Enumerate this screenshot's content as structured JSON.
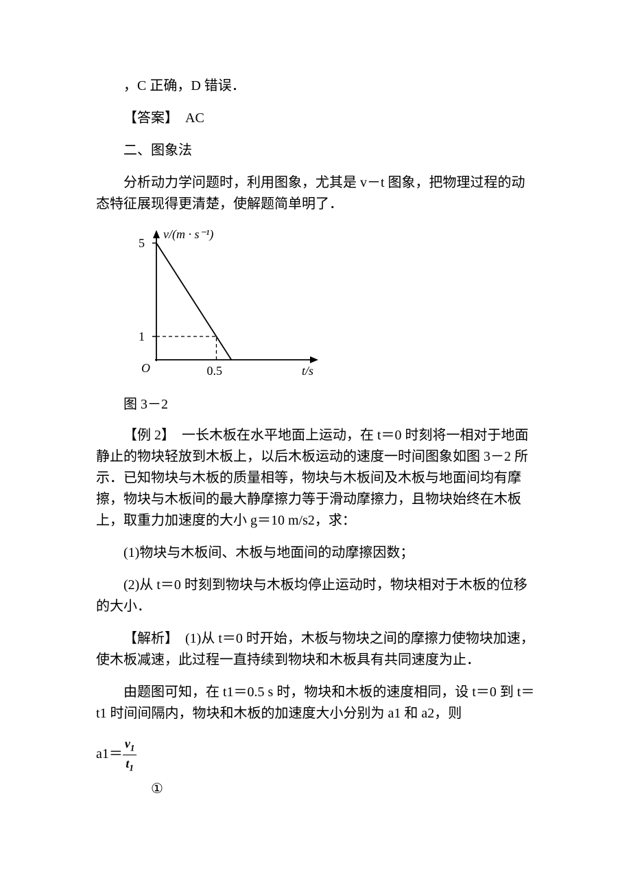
{
  "p1": "，C 正确，D 错误．",
  "p2": "【答案】　AC",
  "p3": "二、图象法",
  "p4": "分析动力学问题时，利用图象，尤其是 v－t 图象，把物理过程的动态特征展现得更清楚，使解题简单明了．",
  "figureLabel": "图 3－2",
  "p5": "【例 2】　一长木板在水平地面上运动，在 t＝0 时刻将一相对于地面静止的物块轻放到木板上，以后木板运动的速度一时间图象如图 3－2 所示．已知物块与木板的质量相等，物块与木板间及木板与地面间均有摩擦，物块与木板间的最大静摩擦力等于滑动摩擦力，且物块始终在木板上，取重力加速度的大小 g＝10 m/s2，求：",
  "p6": "(1)物块与木板间、木板与地面间的动摩擦因数；",
  "p7": "(2)从 t＝0 时刻到物块与木板均停止运动时，物块相对于木板的位移的大小．",
  "p8": "【解析】　(1)从 t＝0 时开始，木板与物块之间的摩擦力使物块加速，使木板减速，此过程一直持续到物块和木板具有共同速度为止．",
  "p9": "由题图可知，在 t1＝0.5 s 时，物块和木板的速度相同，设 t＝0 到 t＝t1 时间间隔内，物块和木板的加速度大小分别为 a1 和 a2，则",
  "formulaPrefix": "a1＝",
  "fracNum": "v",
  "fracNumSub": "1",
  "fracDen": "t",
  "fracDenSub": "1",
  "circled1": "①",
  "watermark": "",
  "chart": {
    "type": "line",
    "xLabel": "t/s",
    "yLabel": "v/(m · s⁻¹)",
    "xTickValues": [
      0.5
    ],
    "yTickValues": [
      1,
      5
    ],
    "yMax": 5,
    "xVisibleMax": 1.2,
    "line": {
      "points": [
        [
          0,
          5
        ],
        [
          0.625,
          0
        ]
      ],
      "color": "#000000",
      "width": 1.8
    },
    "dashedGuides": [
      {
        "from": [
          0,
          1
        ],
        "to": [
          0.5,
          1
        ],
        "color": "#000000"
      },
      {
        "from": [
          0.5,
          0
        ],
        "to": [
          0.5,
          1
        ],
        "color": "#000000"
      }
    ],
    "axisColor": "#000000",
    "backgroundColor": "#ffffff",
    "fontFamily": "Times New Roman",
    "labelFontSize": 18,
    "tickFontSize": 18,
    "originLabel": "O"
  }
}
